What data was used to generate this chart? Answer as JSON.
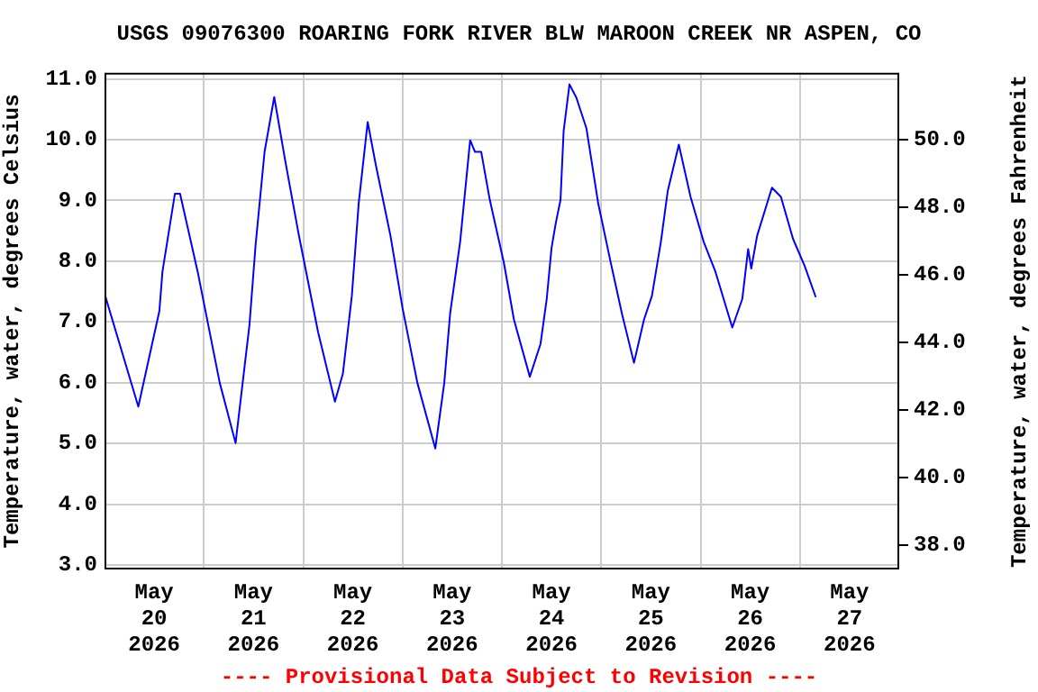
{
  "chart_data": {
    "type": "line",
    "title": "USGS 09076300 ROARING FORK RIVER BLW MAROON CREEK NR ASPEN, CO",
    "ylabel": "Temperature, water, degrees Celsius",
    "y2label": "Temperature, water, degrees Fahrenheit",
    "annotations": [
      "---- Provisional Data Subject to Revision ----"
    ],
    "xlim": [
      "2026-05-20T00:00",
      "2026-05-28T00:00"
    ],
    "xticks": [
      {
        "value": "2026-05-20T12:00",
        "label": "May 20 2026"
      },
      {
        "value": "2026-05-21T12:00",
        "label": "May 21 2026"
      },
      {
        "value": "2026-05-22T12:00",
        "label": "May 22 2026"
      },
      {
        "value": "2026-05-23T12:00",
        "label": "May 23 2026"
      },
      {
        "value": "2026-05-24T12:00",
        "label": "May 24 2026"
      },
      {
        "value": "2026-05-25T12:00",
        "label": "May 25 2026"
      },
      {
        "value": "2026-05-26T12:00",
        "label": "May 26 2026"
      },
      {
        "value": "2026-05-27T12:00",
        "label": "May 27 2026"
      },
      {
        "value": "2026-05-21T00:00",
        "label": null
      },
      {
        "value": "2026-05-22T00:00",
        "label": null
      },
      {
        "value": "2026-05-23T00:00",
        "label": null
      },
      {
        "value": "2026-05-24T00:00",
        "label": null
      },
      {
        "value": "2026-05-25T00:00",
        "label": null
      },
      {
        "value": "2026-05-26T00:00",
        "label": null
      },
      {
        "value": "2026-05-27T00:00",
        "label": null
      }
    ],
    "ylim": [
      2.93,
      11.1
    ],
    "yticks": [
      {
        "value": 3,
        "label": "3.0"
      },
      {
        "value": 4,
        "label": "4.0"
      },
      {
        "value": 5,
        "label": "5.0"
      },
      {
        "value": 6,
        "label": "6.0"
      },
      {
        "value": 7,
        "label": "7.0"
      },
      {
        "value": 8,
        "label": "8.0"
      },
      {
        "value": 9,
        "label": "9.0"
      },
      {
        "value": 10,
        "label": "10.0"
      },
      {
        "value": 11,
        "label": "11.0"
      }
    ],
    "y2lim": [
      37.27,
      51.98
    ],
    "y2ticks": [
      {
        "value": 38,
        "label": "38.0"
      },
      {
        "value": 40,
        "label": "40.0"
      },
      {
        "value": 42,
        "label": "42.0"
      },
      {
        "value": 44,
        "label": "44.0"
      },
      {
        "value": 46,
        "label": "46.0"
      },
      {
        "value": 48,
        "label": "48.0"
      },
      {
        "value": 50,
        "label": "50.0"
      }
    ],
    "grid": true,
    "legend": false,
    "marker": "none",
    "line_style": "solid",
    "series": [
      {
        "color": "#0000ff",
        "x": [
          "2026-05-20T00:05",
          "2026-05-20T08:10",
          "2026-05-20T13:15",
          "2026-05-20T14:00",
          "2026-05-20T17:00",
          "2026-05-20T18:15",
          "2026-05-20T22:30",
          "2026-05-21T03:50",
          "2026-05-21T07:40",
          "2026-05-21T11:00",
          "2026-05-21T12:30",
          "2026-05-21T14:40",
          "2026-05-21T17:00",
          "2026-05-21T19:40",
          "2026-05-21T22:50",
          "2026-05-22T03:35",
          "2026-05-22T07:40",
          "2026-05-22T09:35",
          "2026-05-22T11:45",
          "2026-05-22T13:25",
          "2026-05-22T15:35",
          "2026-05-22T17:30",
          "2026-05-22T21:05",
          "2026-05-23T00:00",
          "2026-05-23T03:35",
          "2026-05-23T07:55",
          "2026-05-23T10:05",
          "2026-05-23T11:30",
          "2026-05-23T13:55",
          "2026-05-23T16:20",
          "2026-05-23T17:30",
          "2026-05-23T19:00",
          "2026-05-23T21:05",
          "2026-05-24T00:30",
          "2026-05-24T02:55",
          "2026-05-24T06:45",
          "2026-05-24T09:20",
          "2026-05-24T10:50",
          "2026-05-24T12:00",
          "2026-05-24T13:00",
          "2026-05-24T14:10",
          "2026-05-24T14:55",
          "2026-05-24T16:20",
          "2026-05-24T18:00",
          "2026-05-24T20:25",
          "2026-05-24T23:15",
          "2026-05-25T02:10",
          "2026-05-25T05:00",
          "2026-05-25T07:55",
          "2026-05-25T10:20",
          "2026-05-25T12:15",
          "2026-05-25T14:25",
          "2026-05-25T16:05",
          "2026-05-25T18:45",
          "2026-05-25T21:35",
          "2026-05-26T00:45",
          "2026-05-26T03:35",
          "2026-05-26T07:40",
          "2026-05-26T10:05",
          "2026-05-26T11:30",
          "2026-05-26T12:15",
          "2026-05-26T13:40",
          "2026-05-26T17:15",
          "2026-05-26T19:25",
          "2026-05-26T22:20",
          "2026-05-27T01:10",
          "2026-05-27T03:50"
        ],
        "values": [
          7.45,
          5.61,
          7.18,
          7.83,
          9.11,
          9.11,
          7.83,
          6.0,
          5.01,
          6.94,
          8.27,
          9.8,
          10.7,
          9.65,
          8.47,
          6.84,
          5.69,
          6.15,
          7.43,
          8.96,
          10.29,
          9.6,
          8.42,
          7.23,
          6.0,
          4.92,
          6.0,
          7.14,
          8.32,
          9.99,
          9.8,
          9.8,
          9.01,
          7.97,
          7.04,
          6.1,
          6.64,
          7.38,
          8.22,
          8.62,
          9.01,
          10.14,
          10.91,
          10.69,
          10.19,
          8.96,
          8.02,
          7.14,
          6.33,
          7.04,
          7.43,
          8.32,
          9.16,
          9.92,
          9.06,
          8.32,
          7.83,
          6.91,
          7.38,
          8.2,
          7.88,
          8.42,
          9.21,
          9.06,
          8.37,
          7.92,
          7.41
        ]
      }
    ]
  }
}
